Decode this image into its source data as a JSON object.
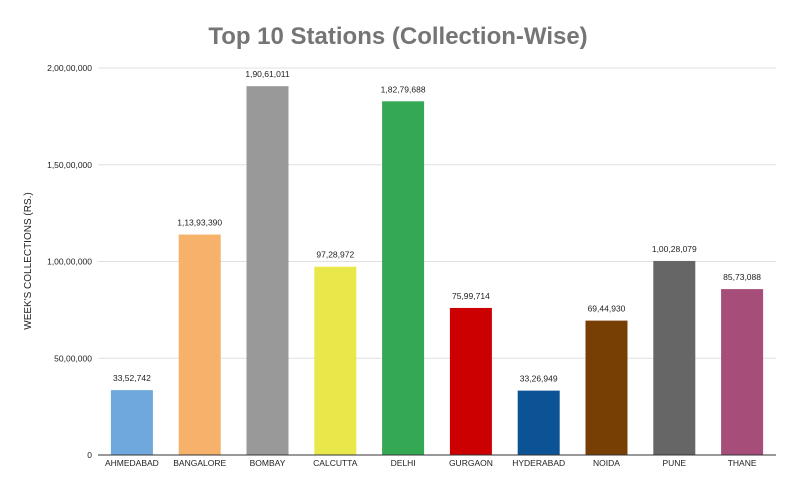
{
  "chart_data": {
    "type": "bar",
    "title": "Top 10 Stations (Collection-Wise)",
    "xlabel": "",
    "ylabel": "WEEK'S COLLECTIONS (RS.)",
    "ylim": [
      0,
      20000000
    ],
    "yticks": [
      {
        "value": 0,
        "label": "0"
      },
      {
        "value": 5000000,
        "label": "50,00,000"
      },
      {
        "value": 10000000,
        "label": "1,00,00,000"
      },
      {
        "value": 15000000,
        "label": "1,50,00,000"
      },
      {
        "value": 20000000,
        "label": "2,00,00,000"
      }
    ],
    "grid": true,
    "legend": "none",
    "categories": [
      "AHMEDABAD",
      "BANGALORE",
      "BOMBAY",
      "CALCUTTA",
      "DELHI",
      "GURGAON",
      "HYDERABAD",
      "NOIDA",
      "PUNE",
      "THANE"
    ],
    "values": [
      3352742,
      11393390,
      19061011,
      9728972,
      18279688,
      7599714,
      3326949,
      6944930,
      10028079,
      8573088
    ],
    "value_labels": [
      "33,52,742",
      "1,13,93,390",
      "1,90,61,011",
      "97,28,972",
      "1,82,79,688",
      "75,99,714",
      "33,26,949",
      "69,44,930",
      "1,00,28,079",
      "85,73,088"
    ],
    "colors": [
      "#6fa8dc",
      "#f6b26b",
      "#999999",
      "#e9e84a",
      "#34a853",
      "#cc0000",
      "#0b5394",
      "#783f04",
      "#666666",
      "#a64d79"
    ]
  }
}
